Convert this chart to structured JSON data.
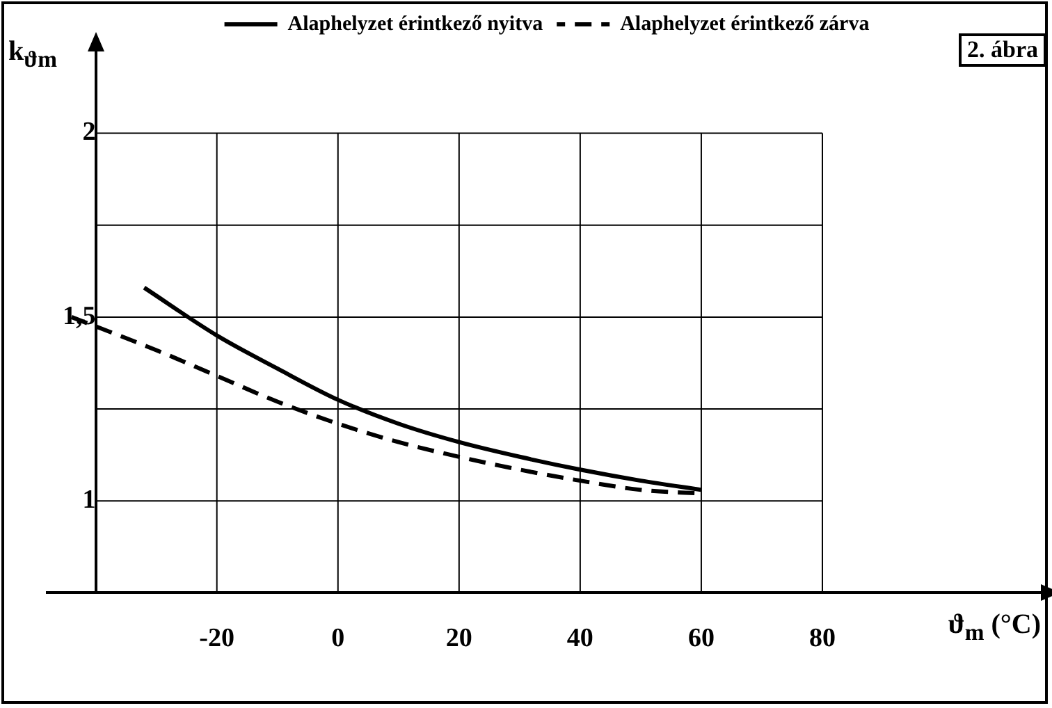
{
  "chart_data": {
    "type": "line",
    "xlabel": "ϑ$_{m}$ (°C)",
    "ylabel": "k$_{ϑm}$",
    "annotations": [
      "2. ábra"
    ],
    "xlim": [
      -48,
      117
    ],
    "ylim": [
      0.75,
      2.23
    ],
    "xticks": [
      {
        "value": -40,
        "label": null
      },
      -20,
      0,
      20,
      40,
      60,
      80
    ],
    "yticks": [
      1,
      {
        "value": 1.25,
        "label": null
      },
      {
        "value": 1.5,
        "label": "1,5"
      },
      {
        "value": 1.75,
        "label": null
      },
      2
    ],
    "grid": true,
    "legend": "top left",
    "marker": "none",
    "series": [
      {
        "name": "Alaphelyzet érintkező nyitva",
        "color": "#000000",
        "line_style": "solid",
        "x": [
          -32,
          -20,
          -10,
          0,
          10,
          20,
          30,
          40,
          50,
          60
        ],
        "values": [
          1.58,
          1.45,
          1.36,
          1.275,
          1.21,
          1.16,
          1.12,
          1.085,
          1.055,
          1.03
        ]
      },
      {
        "name": "Alaphelyzet érintkező zárva",
        "color": "#000000",
        "line_style": "dashed",
        "x": [
          -44,
          -30,
          -20,
          -10,
          0,
          10,
          20,
          30,
          40,
          50,
          60
        ],
        "values": [
          1.5,
          1.41,
          1.34,
          1.27,
          1.21,
          1.16,
          1.12,
          1.085,
          1.055,
          1.03,
          1.02
        ]
      }
    ]
  }
}
